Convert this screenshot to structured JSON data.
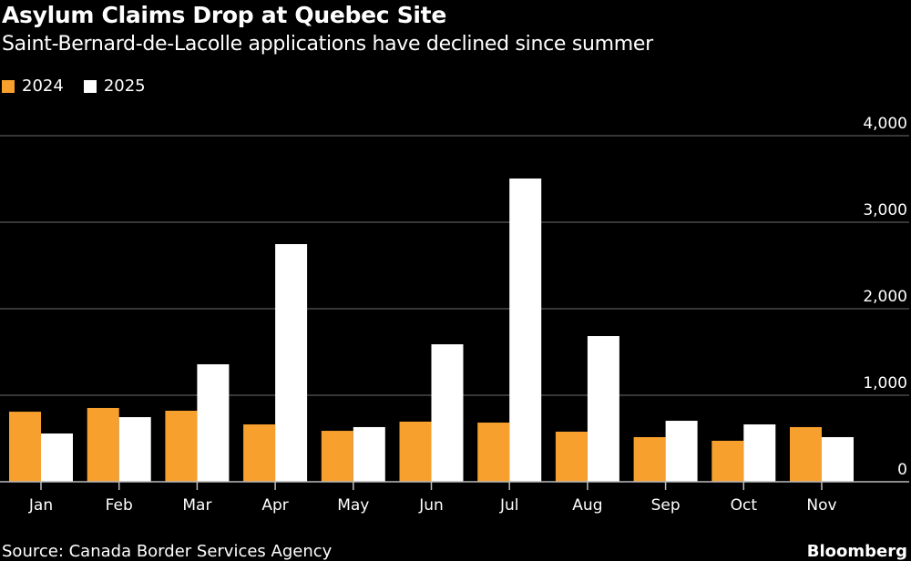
{
  "chart_data": {
    "type": "bar",
    "title": "Asylum Claims Drop at Quebec Site",
    "subtitle": "Saint-Bernard-de-Lacolle applications have declined since summer",
    "categories": [
      "Jan",
      "Feb",
      "Mar",
      "Apr",
      "May",
      "Jun",
      "Jul",
      "Aug",
      "Sep",
      "Oct",
      "Nov"
    ],
    "series": [
      {
        "name": "2024",
        "color": "#f7a02d",
        "values": [
          810,
          853,
          821,
          663,
          589,
          695,
          684,
          579,
          516,
          474,
          632
        ]
      },
      {
        "name": "2025",
        "color": "#ffffff",
        "values": [
          558,
          747,
          1358,
          2747,
          632,
          1589,
          3505,
          1684,
          705,
          663,
          516
        ]
      }
    ],
    "yticks": [
      0,
      1000,
      2000,
      3000,
      4000
    ],
    "ytick_labels": [
      "0",
      "1,000",
      "2,000",
      "3,000",
      "4,000"
    ],
    "ylim": [
      0,
      4000
    ],
    "xlabel": "",
    "ylabel": "",
    "grid": true,
    "legend_position": "top-left"
  },
  "source": "Source: Canada Border Services Agency",
  "brand": "Bloomberg"
}
